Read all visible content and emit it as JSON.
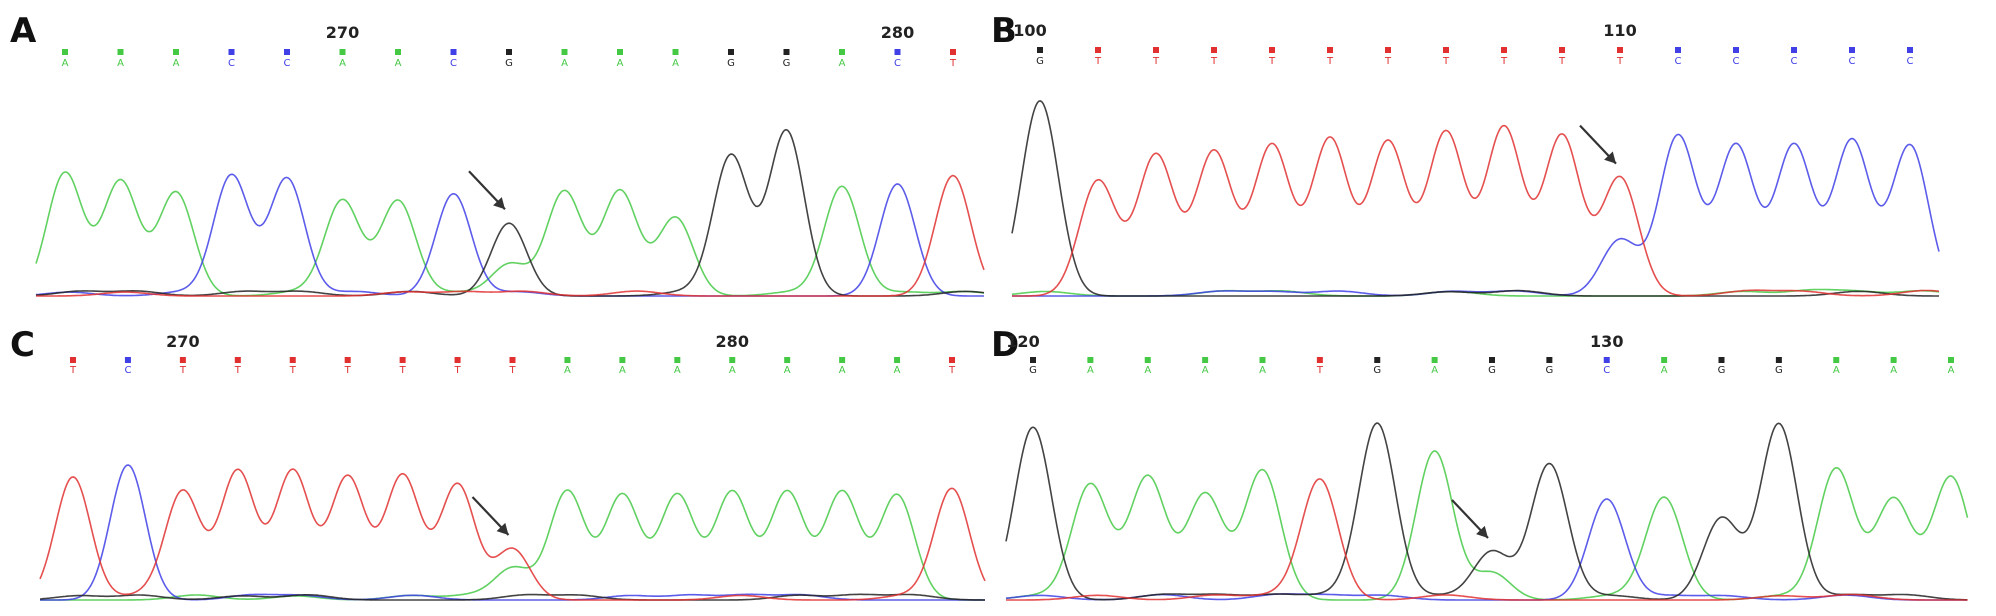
{
  "colors": {
    "A": "#45c945",
    "C": "#4040e6",
    "G": "#222222",
    "T": "#e03030"
  },
  "chart_data": [
    {
      "type": "line",
      "panel": "A",
      "position_labels": [
        {
          "text": "270",
          "base_index": 5
        },
        {
          "text": "280",
          "base_index": 15
        }
      ],
      "bases": [
        "A",
        "A",
        "A",
        "C",
        "C",
        "A",
        "A",
        "C",
        "G",
        "A",
        "A",
        "A",
        "G",
        "G",
        "A",
        "C",
        "T"
      ],
      "peaks": [
        {
          "base": "A",
          "height": 0.88
        },
        {
          "base": "A",
          "height": 0.82
        },
        {
          "base": "A",
          "height": 0.74
        },
        {
          "base": "C",
          "height": 0.86
        },
        {
          "base": "C",
          "height": 0.84
        },
        {
          "base": "A",
          "height": 0.68
        },
        {
          "base": "A",
          "height": 0.68
        },
        {
          "base": "C",
          "height": 0.73
        },
        {
          "base": "G",
          "height": 0.52,
          "secondary": {
            "base": "A",
            "height": 0.2
          }
        },
        {
          "base": "A",
          "height": 0.74
        },
        {
          "base": "A",
          "height": 0.75
        },
        {
          "base": "A",
          "height": 0.56
        },
        {
          "base": "G",
          "height": 1.0
        },
        {
          "base": "G",
          "height": 1.18
        },
        {
          "base": "A",
          "height": 0.78
        },
        {
          "base": "C",
          "height": 0.8
        },
        {
          "base": "T",
          "height": 0.86
        }
      ],
      "arrow_at": 8
    },
    {
      "type": "line",
      "panel": "B",
      "position_labels": [
        {
          "text": "100",
          "base_index": 0
        },
        {
          "text": "110",
          "base_index": 10
        }
      ],
      "bases": [
        "G",
        "T",
        "T",
        "T",
        "T",
        "T",
        "T",
        "T",
        "T",
        "T",
        "T",
        "C",
        "C",
        "C",
        "C",
        "C"
      ],
      "peaks": [
        {
          "base": "G",
          "height": 1.22
        },
        {
          "base": "T",
          "height": 0.72
        },
        {
          "base": "T",
          "height": 0.88
        },
        {
          "base": "T",
          "height": 0.9
        },
        {
          "base": "T",
          "height": 0.94
        },
        {
          "base": "T",
          "height": 0.98
        },
        {
          "base": "T",
          "height": 0.96
        },
        {
          "base": "T",
          "height": 1.02
        },
        {
          "base": "T",
          "height": 1.05
        },
        {
          "base": "T",
          "height": 1.0
        },
        {
          "base": "T",
          "height": 0.74,
          "secondary": {
            "base": "C",
            "height": 0.35
          }
        },
        {
          "base": "C",
          "height": 1.0
        },
        {
          "base": "C",
          "height": 0.94
        },
        {
          "base": "C",
          "height": 0.94
        },
        {
          "base": "C",
          "height": 0.97
        },
        {
          "base": "C",
          "height": 0.94
        }
      ],
      "arrow_at": 10
    },
    {
      "type": "line",
      "panel": "C",
      "position_labels": [
        {
          "text": "270",
          "base_index": 2
        },
        {
          "text": "280",
          "base_index": 12
        }
      ],
      "bases": [
        "T",
        "C",
        "T",
        "T",
        "T",
        "T",
        "T",
        "T",
        "T",
        "A",
        "A",
        "A",
        "A",
        "A",
        "A",
        "A",
        "T"
      ],
      "peaks": [
        {
          "base": "T",
          "height": 0.82
        },
        {
          "base": "C",
          "height": 0.9
        },
        {
          "base": "T",
          "height": 0.72
        },
        {
          "base": "T",
          "height": 0.86
        },
        {
          "base": "T",
          "height": 0.86
        },
        {
          "base": "T",
          "height": 0.82
        },
        {
          "base": "T",
          "height": 0.83
        },
        {
          "base": "T",
          "height": 0.77
        },
        {
          "base": "T",
          "height": 0.34,
          "secondary": {
            "base": "A",
            "height": 0.18
          }
        },
        {
          "base": "A",
          "height": 0.72
        },
        {
          "base": "A",
          "height": 0.7
        },
        {
          "base": "A",
          "height": 0.7
        },
        {
          "base": "A",
          "height": 0.72
        },
        {
          "base": "A",
          "height": 0.72
        },
        {
          "base": "A",
          "height": 0.72
        },
        {
          "base": "A",
          "height": 0.7
        },
        {
          "base": "T",
          "height": 0.74
        }
      ],
      "arrow_at": 8
    },
    {
      "type": "line",
      "panel": "D",
      "position_labels": [
        {
          "text": "120",
          "base_index": 0
        },
        {
          "text": "130",
          "base_index": 10
        }
      ],
      "bases": [
        "G",
        "A",
        "A",
        "A",
        "A",
        "T",
        "G",
        "A",
        "G",
        "G",
        "C",
        "A",
        "G",
        "G",
        "A",
        "A",
        "A"
      ],
      "peaks": [
        {
          "base": "G",
          "height": 1.08
        },
        {
          "base": "A",
          "height": 0.72
        },
        {
          "base": "A",
          "height": 0.77
        },
        {
          "base": "A",
          "height": 0.66
        },
        {
          "base": "A",
          "height": 0.81
        },
        {
          "base": "T",
          "height": 0.75
        },
        {
          "base": "G",
          "height": 1.1
        },
        {
          "base": "A",
          "height": 0.93
        },
        {
          "base": "G",
          "height": 0.3,
          "secondary": {
            "base": "A",
            "height": 0.17
          }
        },
        {
          "base": "G",
          "height": 0.85
        },
        {
          "base": "C",
          "height": 0.63
        },
        {
          "base": "A",
          "height": 0.64
        },
        {
          "base": "G",
          "height": 0.51
        },
        {
          "base": "G",
          "height": 1.1
        },
        {
          "base": "A",
          "height": 0.82
        },
        {
          "base": "A",
          "height": 0.63
        },
        {
          "base": "A",
          "height": 0.77
        }
      ],
      "arrow_at": 8
    }
  ]
}
